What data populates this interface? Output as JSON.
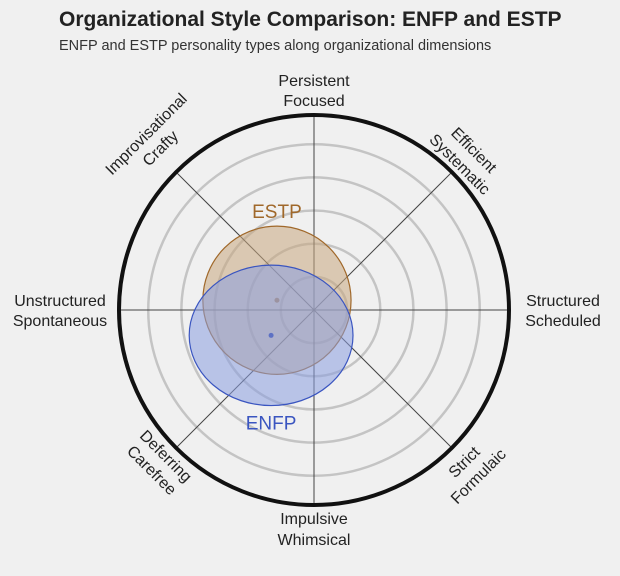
{
  "title": "Organizational Style Comparison: ENFP and ESTP",
  "subtitle": "ENFP and ESTP personality types along organizational dimensions",
  "chart_data": {
    "type": "radial-position",
    "rings": [
      0.17,
      0.34,
      0.51,
      0.68,
      0.85
    ],
    "axes": {
      "top": [
        "Persistent",
        "Focused"
      ],
      "top_right": [
        "Efficient",
        "Systematic"
      ],
      "right": [
        "Structured",
        "Scheduled"
      ],
      "bottom_right": [
        "Strict",
        "Formulaic"
      ],
      "bottom": [
        "Impulsive",
        "Whimsical"
      ],
      "bottom_left": [
        "Deferring",
        "Carefree"
      ],
      "left": [
        "Unstructured",
        "Spontaneous"
      ],
      "top_left": [
        "Improvisational",
        "Crafty"
      ]
    },
    "series": [
      {
        "name": "ESTP",
        "x": -0.19,
        "y": 0.05,
        "rx": 0.38,
        "ry": 0.38,
        "color": "#a0682a",
        "fill": "#c8a880"
      },
      {
        "name": "ENFP",
        "x": -0.22,
        "y": -0.13,
        "rx": 0.42,
        "ry": 0.36,
        "color": "#3a55c0",
        "fill": "#8a9ee0"
      }
    ]
  }
}
